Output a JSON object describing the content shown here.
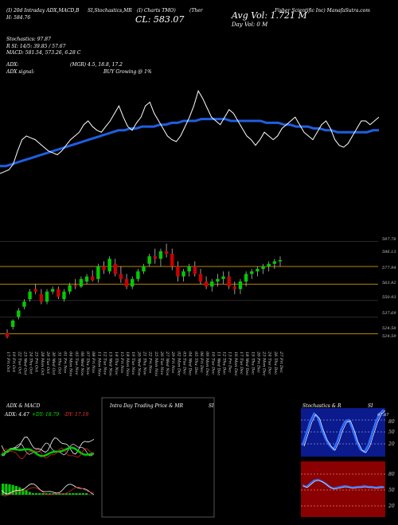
{
  "header": {
    "line1": "(I) 20d Intraday ADX,MACD,B",
    "line1b": "SI,Stochastics,MR",
    "line1c": "(I) Charts TMO)",
    "line1d": "(Ther",
    "line1e": "Fisher Scientific Inc) ManafaSutra.com",
    "line2": "CL: 583.07",
    "line3_left": "H: 584.76",
    "avg_vol": "Avg Vol: 1.721 M",
    "day_vol": "Day Vol: 0   M",
    "stochastics": "Stochastics: 97.87",
    "rsi": "R      SI: 14/5: 39.85 / 57.67",
    "macd": "MACD: 581.54,  573.26,  6.28   C",
    "adx": "ADX:",
    "adx_mgr": "(MGR) 4.5,  18.8,  17.2",
    "adx_signal": "ADX  signal:",
    "buy_signal": "BUY Growing @ 1%"
  },
  "colors": {
    "background": "#000000",
    "ma_line": "#1f5fe0",
    "price_line": "#ffffff",
    "up_candle": "#00cc00",
    "down_candle": "#cc0000",
    "level_line": "#b8860b",
    "adx_green": "#00cc00",
    "rsi_red": "#8b0000"
  },
  "chart_data": [
    {
      "type": "line",
      "series": [
        {
          "values": [
            560,
            561,
            562,
            565,
            572,
            578,
            580,
            579,
            578,
            576,
            574,
            572,
            571,
            570,
            572,
            575,
            578,
            580,
            582,
            586,
            588,
            585,
            583,
            582,
            585,
            588,
            592,
            596,
            590,
            585,
            583,
            587,
            590,
            596,
            598,
            592,
            588,
            584,
            580,
            578,
            577,
            580,
            585,
            590,
            596,
            604,
            600,
            595,
            590,
            588,
            586,
            590,
            594,
            592,
            588,
            584,
            580,
            578,
            575,
            578,
            582,
            580,
            578,
            580,
            584,
            586,
            588,
            590,
            586,
            582,
            580,
            578,
            582,
            586,
            588,
            584,
            578,
            575,
            574,
            576,
            580,
            584,
            588,
            588,
            586,
            588,
            590
          ]
        },
        {
          "values": [
            564,
            564,
            565,
            566,
            567,
            568,
            569,
            570,
            571,
            572,
            573,
            574,
            575,
            576,
            577,
            578,
            579,
            580,
            581,
            582,
            583,
            583,
            584,
            584,
            585,
            585,
            585,
            586,
            586,
            587,
            587,
            588,
            588,
            588,
            589,
            589,
            589,
            589,
            589,
            588,
            588,
            588,
            588,
            588,
            588,
            587,
            587,
            587,
            586,
            586,
            585,
            585,
            585,
            584,
            584,
            583,
            583,
            582,
            582,
            582,
            582,
            582,
            582,
            583,
            583
          ]
        }
      ]
    },
    {
      "type": "bar",
      "categories": [
        "17 Fri Oct",
        "19 Fri Oct",
        "22 Tue Oct",
        "23 Wed Oct",
        "24 Thu Oct",
        "25 Fri Oct",
        "28 Mon Oct",
        "29 Tue Oct",
        "30 Wed Oct",
        "31 Thu Oct",
        "01 Fri Nov",
        "04 Mon Nov",
        "05 Tue Nov",
        "06 Wed Nov",
        "07 Thu Nov",
        "08 Fri Nov",
        "11 Mon Nov",
        "12 Tue Nov",
        "13 Wed Nov",
        "14 Thu Nov",
        "15 Fri Nov",
        "18 Mon Nov",
        "19 Tue Nov",
        "20 Wed Nov",
        "21 Thu Nov",
        "22 Fri Nov",
        "25 Mon Nov",
        "26 Tue Nov",
        "27 Wed Nov",
        "29 Fri Nov",
        "02 Mon Dec",
        "03 Tue Dec",
        "04 Wed Dec",
        "05 Thu Dec",
        "06 Fri Dec",
        "09 Mon Dec",
        "10 Tue Dec",
        "11 Wed Dec",
        "12 Thu Dec",
        "13 Fri Dec",
        "16 Mon Dec",
        "17 Tue Dec",
        "18 Wed Dec",
        "19 Thu Dec",
        "20 Fri Dec",
        "23 Mon Dec",
        "24 Tue Dec",
        "26 Thu Dec",
        "27 Fri Dec"
      ],
      "price_levels": [
        "597.78",
        "596.13",
        "577.94",
        "563.92",
        "550.93",
        "537.69",
        "524.58",
        "524.59"
      ],
      "ohlc": [
        [
          525,
          528,
          521,
          522
        ],
        [
          530,
          536,
          528,
          535
        ],
        [
          538,
          545,
          536,
          543
        ],
        [
          546,
          552,
          544,
          550
        ],
        [
          552,
          560,
          550,
          558
        ],
        [
          560,
          564,
          556,
          558
        ],
        [
          556,
          560,
          548,
          550
        ],
        [
          550,
          560,
          548,
          558
        ],
        [
          558,
          562,
          556,
          560
        ],
        [
          560,
          562,
          552,
          554
        ],
        [
          552,
          560,
          550,
          558
        ],
        [
          558,
          565,
          556,
          563
        ],
        [
          563,
          568,
          560,
          562
        ],
        [
          562,
          570,
          561,
          568
        ],
        [
          566,
          572,
          564,
          570
        ],
        [
          570,
          575,
          566,
          567
        ],
        [
          568,
          580,
          565,
          578
        ],
        [
          578,
          582,
          572,
          575
        ],
        [
          574,
          586,
          572,
          584
        ],
        [
          580,
          584,
          570,
          572
        ],
        [
          572,
          578,
          565,
          568
        ],
        [
          568,
          572,
          560,
          562
        ],
        [
          562,
          570,
          560,
          568
        ],
        [
          568,
          576,
          566,
          574
        ],
        [
          574,
          580,
          572,
          578
        ],
        [
          580,
          588,
          578,
          586
        ],
        [
          586,
          592,
          580,
          584
        ],
        [
          584,
          592,
          578,
          590
        ],
        [
          590,
          596,
          585,
          588
        ],
        [
          588,
          592,
          575,
          578
        ],
        [
          578,
          582,
          566,
          570
        ],
        [
          570,
          576,
          566,
          574
        ],
        [
          574,
          580,
          570,
          578
        ],
        [
          578,
          582,
          570,
          572
        ],
        [
          572,
          576,
          564,
          566
        ],
        [
          566,
          570,
          560,
          562
        ],
        [
          562,
          568,
          558,
          566
        ],
        [
          566,
          572,
          562,
          568
        ],
        [
          568,
          574,
          564,
          570
        ],
        [
          570,
          574,
          560,
          562
        ],
        [
          562,
          566,
          556,
          560
        ],
        [
          560,
          568,
          556,
          566
        ],
        [
          566,
          574,
          562,
          572
        ],
        [
          572,
          576,
          568,
          574
        ],
        [
          574,
          578,
          570,
          576
        ],
        [
          576,
          580,
          572,
          578
        ],
        [
          578,
          582,
          574,
          580
        ],
        [
          580,
          584,
          576,
          582
        ],
        [
          582,
          586,
          578,
          583
        ]
      ]
    },
    {
      "type": "line",
      "title": "ADX  & MACD",
      "adx_label": "ADX: 4.47",
      "plus_di_label": "+DY: 18.79",
      "minus_di_label": "-DY: 17.19"
    },
    {
      "type": "line",
      "title": "Intra  Day Trading Price  & MR",
      "title_b": "SI"
    },
    {
      "type": "line",
      "title": "Stochastics & R",
      "title_b": "SI",
      "stoch_ticks": [
        "80",
        "50",
        "20"
      ],
      "rsi_ticks": [
        "80",
        "50",
        "20"
      ],
      "stoch_value_label": "97.87"
    }
  ]
}
